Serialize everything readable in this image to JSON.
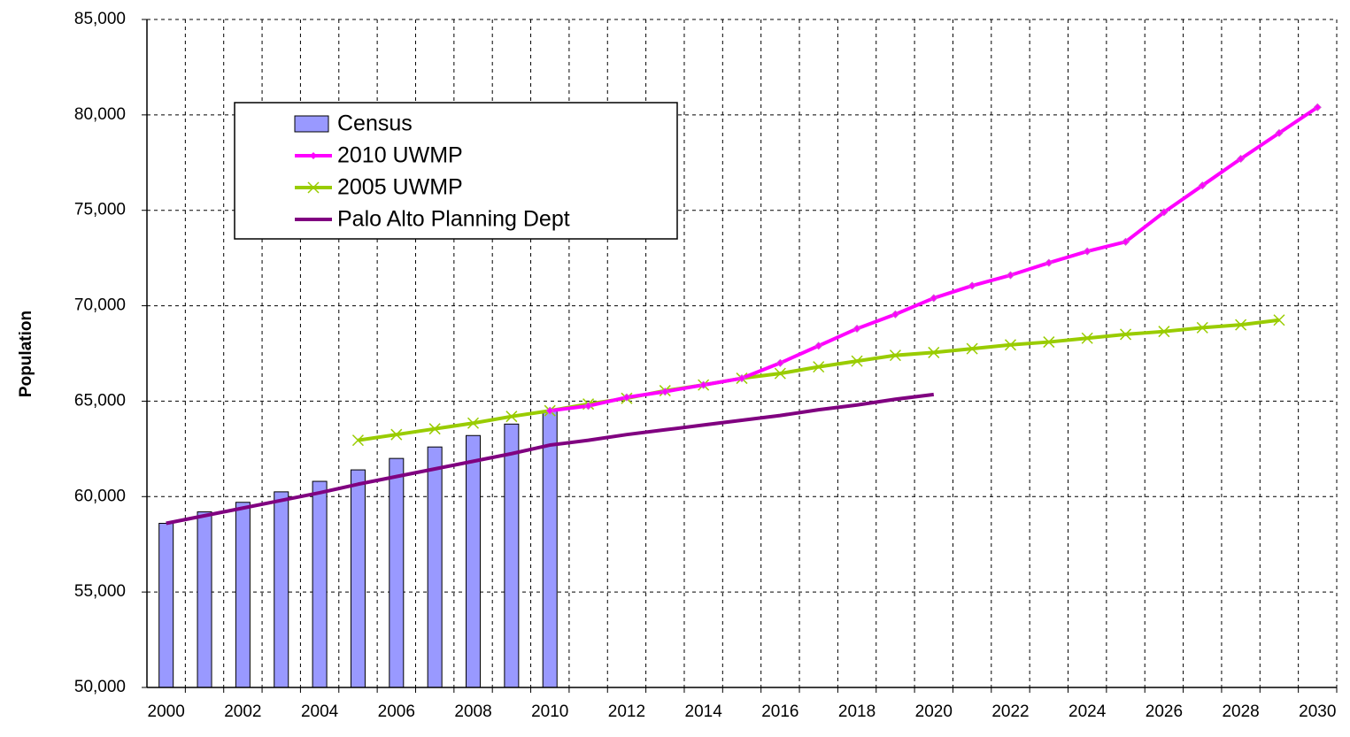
{
  "chart_data": {
    "type": "bar",
    "y_label": "Population",
    "categories": [
      "2000",
      null,
      "2002",
      null,
      "2004",
      null,
      "2006",
      null,
      "2008",
      null,
      "2010",
      null,
      "2012",
      null,
      "2014",
      null,
      "2016",
      null,
      "2018",
      null,
      "2020",
      null,
      "2022",
      null,
      "2024",
      null,
      "2026",
      null,
      "2028",
      null,
      "2030"
    ],
    "series": [
      {
        "name": "Census",
        "type": "bar",
        "color": "#9999ff",
        "values": [
          58600,
          59200,
          59700,
          60250,
          60800,
          61400,
          62000,
          62600,
          63200,
          63800,
          64500,
          null,
          null,
          null,
          null,
          null,
          null,
          null,
          null,
          null,
          null,
          null,
          null,
          null,
          null,
          null,
          null,
          null,
          null,
          null,
          null
        ]
      },
      {
        "name": "2010 UWMP",
        "type": "line",
        "color": "#ff00ff",
        "marker": "diamond",
        "values": [
          null,
          null,
          null,
          null,
          null,
          null,
          null,
          null,
          null,
          null,
          64500,
          64750,
          65200,
          65500,
          65850,
          66200,
          67000,
          67900,
          68800,
          69550,
          70400,
          71050,
          71600,
          72250,
          72850,
          73350,
          74900,
          76300,
          77700,
          79050,
          80400
        ]
      },
      {
        "name": "2005 UWMP",
        "type": "line",
        "color": "#99cc00",
        "marker": "x",
        "values": [
          null,
          null,
          null,
          null,
          null,
          62950,
          63250,
          63550,
          63850,
          64200,
          64500,
          64850,
          65150,
          65550,
          65850,
          66200,
          66450,
          66800,
          67100,
          67400,
          67550,
          67750,
          67950,
          68100,
          68300,
          68500,
          68650,
          68850,
          69000,
          69250,
          null
        ]
      },
      {
        "name": "Palo Alto Planning Dept",
        "type": "line",
        "color": "#800080",
        "marker": "none",
        "values": [
          58600,
          59000,
          59400,
          59800,
          60200,
          60650,
          61050,
          61450,
          61850,
          62250,
          62700,
          62950,
          63250,
          63500,
          63750,
          64000,
          64250,
          64550,
          64800,
          65100,
          65350,
          null,
          null,
          null,
          null,
          null,
          null,
          null,
          null,
          null,
          null
        ]
      }
    ],
    "ylim": [
      50000,
      85000
    ],
    "yticks": [
      {
        "value": 50000,
        "label": "50,000"
      },
      {
        "value": 55000,
        "label": "55,000"
      },
      {
        "value": 60000,
        "label": "60,000"
      },
      {
        "value": 65000,
        "label": "65,000"
      },
      {
        "value": 70000,
        "label": "70,000"
      },
      {
        "value": 75000,
        "label": "75,000"
      },
      {
        "value": 80000,
        "label": "80,000"
      },
      {
        "value": 85000,
        "label": "85,000"
      }
    ],
    "grid": true,
    "legend": "upper left"
  }
}
